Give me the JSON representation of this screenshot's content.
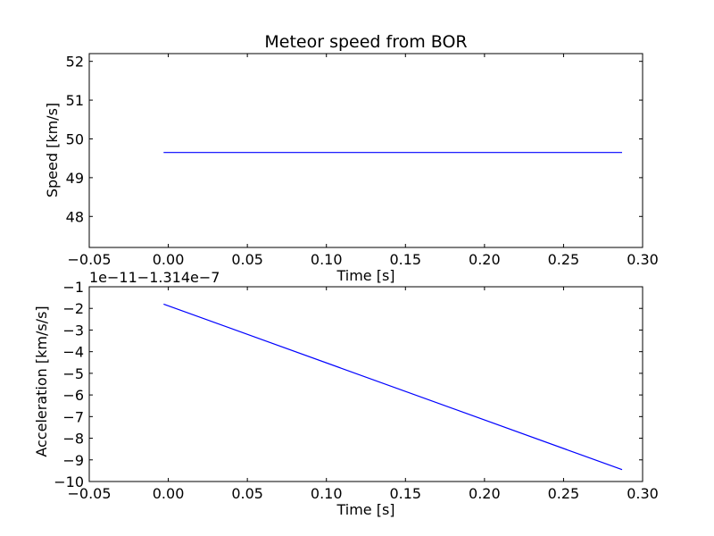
{
  "chart_data": [
    {
      "type": "line",
      "title": "Meteor speed from  BOR",
      "xlabel": "Time [s]",
      "ylabel": "Speed [km/s]",
      "xlim": [
        -0.05,
        0.3
      ],
      "ylim": [
        47.2,
        52.2
      ],
      "xticks": [
        "−0.05",
        "0.00",
        "0.05",
        "0.10",
        "0.15",
        "0.20",
        "0.25",
        "0.30"
      ],
      "yticks": [
        "48",
        "49",
        "50",
        "51",
        "52"
      ],
      "grid": false,
      "series": [
        {
          "x": [
            -0.003,
            0.287
          ],
          "y": [
            49.65,
            49.65
          ],
          "color": "#0000ff"
        }
      ]
    },
    {
      "type": "line",
      "title": "",
      "offset_text": "1e−11−1.314e−7",
      "xlabel": "Time [s]",
      "ylabel": "Acceleration [km/s/s]",
      "xlim": [
        -0.05,
        0.3
      ],
      "ylim": [
        -10,
        -1
      ],
      "xticks": [
        "−0.05",
        "0.00",
        "0.05",
        "0.10",
        "0.15",
        "0.20",
        "0.25",
        "0.30"
      ],
      "yticks": [
        "−10",
        "−9",
        "−8",
        "−7",
        "−6",
        "−5",
        "−4",
        "−3",
        "−2",
        "−1"
      ],
      "grid": false,
      "series": [
        {
          "x": [
            -0.003,
            0.287
          ],
          "y": [
            -1.8,
            -9.45
          ],
          "color": "#0000ff"
        }
      ]
    }
  ]
}
